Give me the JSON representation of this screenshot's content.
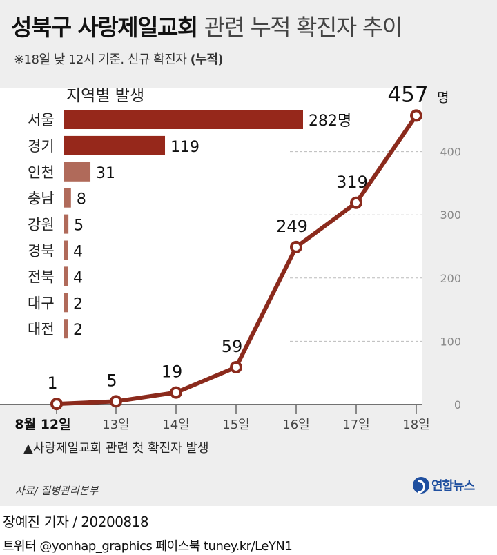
{
  "title": {
    "main": "성북구 사랑제일교회",
    "sub": "관련 누적 확진자 추이"
  },
  "note": {
    "text": "※18일 낮 12시 기준. 신규 확진자",
    "bold": "(누적)"
  },
  "colors": {
    "line": "#8b2a1c",
    "bar_dark": "#96281b",
    "bar_light": "#b06a5a",
    "grid": "#bbbbbb",
    "panel": "#eeeeee",
    "plot_bg": "#ffffff",
    "logo": "#1f4f9f"
  },
  "chart_data": [
    {
      "type": "line",
      "x": [
        "8월 12일",
        "13일",
        "14일",
        "15일",
        "16일",
        "17일",
        "18일"
      ],
      "series": [
        {
          "values": [
            1,
            5,
            19,
            59,
            249,
            319,
            457
          ]
        }
      ],
      "data_labels": [
        "1",
        "5",
        "19",
        "59",
        "249",
        "319",
        "457명"
      ],
      "ylim": [
        0,
        500
      ],
      "yticks": [
        0,
        100,
        200,
        300,
        400
      ],
      "y_axis_side": "right",
      "grid": true,
      "annotations": [
        "▲사랑제일교회 관련 첫 확진자 발생"
      ]
    },
    {
      "type": "bar",
      "orientation": "horizontal",
      "title": "지역별 발생",
      "categories": [
        "서울",
        "경기",
        "인천",
        "충남",
        "강원",
        "경북",
        "전북",
        "대구",
        "대전"
      ],
      "values": [
        282,
        119,
        31,
        8,
        5,
        4,
        4,
        2,
        2
      ],
      "data_labels": [
        "282명",
        "119",
        "31",
        "8",
        "5",
        "4",
        "4",
        "2",
        "2"
      ]
    }
  ],
  "footer": {
    "source": "자료/ 질병관리본부",
    "logo_text": "연합뉴스",
    "credit": "장예진 기자 / 20200818",
    "social": "트위터 @yonhap_graphics  페이스북 tuney.kr/LeYN1"
  }
}
